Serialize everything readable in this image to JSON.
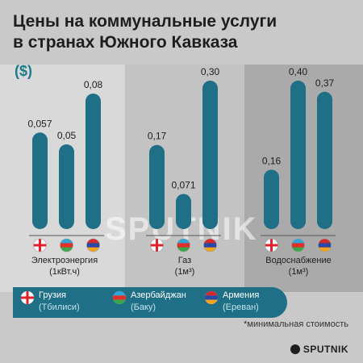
{
  "title": [
    "Цены на коммунальные услуги",
    "в странах Южного Кавказа"
  ],
  "currency_label": "($)",
  "watermark": "SPUTNIK",
  "note": "*минимальная стоимость",
  "brand": "SPUTNIK",
  "colors": {
    "bar": "#1f6f86",
    "panel1": "#d9d9d9",
    "panel2": "#c3c3c3",
    "panel3": "#aaaaaa",
    "accent": "#1c7a8e"
  },
  "legend": [
    {
      "country": "Грузия",
      "city": "(Тбилиси)",
      "flag": "georgia-flag-icon"
    },
    {
      "country": "Азербайджан",
      "city": "(Баку)",
      "flag": "azerbaijan-flag-icon"
    },
    {
      "country": "Армения",
      "city": "(Ереван)",
      "flag": "armenia-flag-icon"
    }
  ],
  "chart_data": {
    "type": "bar",
    "categories": [
      {
        "label": "Электроэнергия",
        "unit": "(1кВт.ч)"
      },
      {
        "label": "Газ",
        "unit": "(1м³)"
      },
      {
        "label": "Водоснабжение",
        "unit": "(1м³)"
      }
    ],
    "series": [
      {
        "name": "Грузия (Тбилиси)",
        "values": [
          0.057,
          0.17,
          0.16
        ],
        "labels": [
          "0,057",
          "0,17",
          "0,16"
        ]
      },
      {
        "name": "Азербайджан (Баку)",
        "values": [
          0.05,
          0.071,
          0.4
        ],
        "labels": [
          "0,05",
          "0,071",
          "0,40"
        ]
      },
      {
        "name": "Армения (Ереван)",
        "values": [
          0.08,
          0.3,
          0.37
        ],
        "labels": [
          "0,08",
          "0,30",
          "0,37"
        ]
      }
    ],
    "note": "Each category panel uses its own vertical scale"
  }
}
